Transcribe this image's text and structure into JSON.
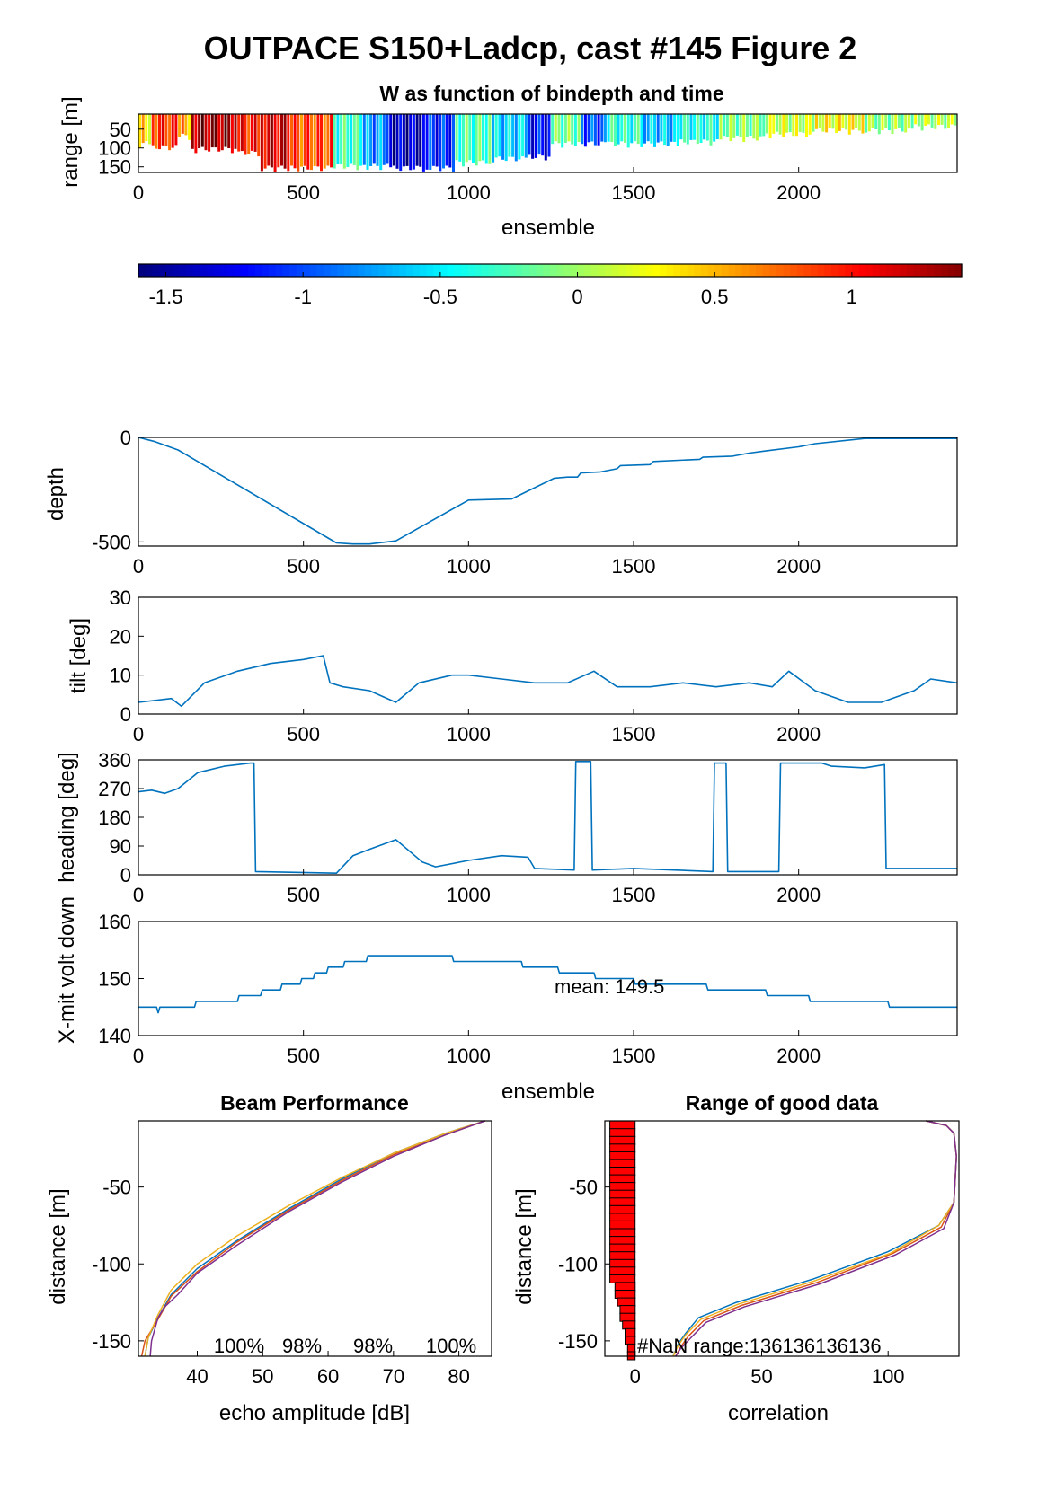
{
  "figure_title": "OUTPACE S150+Ladcp, cast #145 Figure 2",
  "chart_data": [
    {
      "id": "w-image",
      "type": "heatmap",
      "title": "W as function of bindepth and time",
      "xlabel": "ensemble",
      "ylabel": "range [m]",
      "xlim": [
        0,
        2480
      ],
      "ylim": [
        165,
        10
      ],
      "xticks": [
        "0",
        "500",
        "1000",
        "1500",
        "2000"
      ],
      "yticks": [
        "50",
        "100",
        "150"
      ],
      "colorbar": {
        "range": [
          -1.6,
          1.4
        ],
        "ticks": [
          "-1.5",
          "-1",
          "-0.5",
          "0",
          "0.5",
          "1"
        ],
        "tick_values": [
          -1.5,
          -1,
          -0.5,
          0,
          0.5,
          1
        ]
      },
      "segments": [
        {
          "x": [
            0,
            40
          ],
          "w": 0.35,
          "depth": 100
        },
        {
          "x": [
            40,
            120
          ],
          "w": 0.9,
          "depth": 110
        },
        {
          "x": [
            120,
            160
          ],
          "w": 0.55,
          "depth": 80
        },
        {
          "x": [
            160,
            300
          ],
          "w": 1.3,
          "depth": 115
        },
        {
          "x": [
            300,
            370
          ],
          "w": 0.95,
          "depth": 125
        },
        {
          "x": [
            370,
            460
          ],
          "w": 1.15,
          "depth": 165
        },
        {
          "x": [
            460,
            590
          ],
          "w": 0.8,
          "depth": 165
        },
        {
          "x": [
            590,
            680
          ],
          "w": -0.3,
          "depth": 160
        },
        {
          "x": [
            680,
            760
          ],
          "w": -0.8,
          "depth": 160
        },
        {
          "x": [
            760,
            870
          ],
          "w": -1.4,
          "depth": 165
        },
        {
          "x": [
            870,
            960
          ],
          "w": -1.1,
          "depth": 165
        },
        {
          "x": [
            960,
            1070
          ],
          "w": -0.25,
          "depth": 150
        },
        {
          "x": [
            1070,
            1180
          ],
          "w": -0.6,
          "depth": 140
        },
        {
          "x": [
            1180,
            1250
          ],
          "w": -1.2,
          "depth": 135
        },
        {
          "x": [
            1250,
            1340
          ],
          "w": -0.15,
          "depth": 100
        },
        {
          "x": [
            1340,
            1420
          ],
          "w": -1.0,
          "depth": 100
        },
        {
          "x": [
            1420,
            1520
          ],
          "w": -0.35,
          "depth": 100
        },
        {
          "x": [
            1520,
            1640
          ],
          "w": -0.65,
          "depth": 100
        },
        {
          "x": [
            1640,
            1760
          ],
          "w": -0.4,
          "depth": 95
        },
        {
          "x": [
            1760,
            1900
          ],
          "w": -0.1,
          "depth": 85
        },
        {
          "x": [
            1900,
            2050
          ],
          "w": 0.1,
          "depth": 75
        },
        {
          "x": [
            2050,
            2200
          ],
          "w": 0.25,
          "depth": 65
        },
        {
          "x": [
            2200,
            2350
          ],
          "w": -0.05,
          "depth": 65
        },
        {
          "x": [
            2350,
            2480
          ],
          "w": 0.05,
          "depth": 55
        }
      ]
    },
    {
      "id": "depth",
      "type": "line",
      "ylabel": "depth",
      "xlim": [
        0,
        2480
      ],
      "ylim": [
        -520,
        0
      ],
      "xticks": [
        "0",
        "500",
        "1000",
        "1500",
        "2000"
      ],
      "yticks": [
        "0",
        "-500"
      ],
      "ytick_values": [
        0,
        -500
      ],
      "series": [
        {
          "x": [
            0,
            50,
            120,
            600,
            650,
            700,
            780,
            1000,
            1130,
            1260,
            1300,
            1330,
            1340,
            1400,
            1450,
            1460,
            1550,
            1560,
            1700,
            1710,
            1800,
            1850,
            1900,
            2000,
            2050,
            2200,
            2480
          ],
          "y": [
            0,
            -20,
            -60,
            -505,
            -510,
            -510,
            -495,
            -300,
            -295,
            -195,
            -190,
            -190,
            -170,
            -165,
            -150,
            -135,
            -130,
            -115,
            -105,
            -95,
            -90,
            -75,
            -65,
            -45,
            -30,
            -5,
            -5
          ]
        }
      ]
    },
    {
      "id": "tilt",
      "type": "line",
      "ylabel": "tilt [deg]",
      "xlim": [
        0,
        2480
      ],
      "ylim": [
        0,
        30
      ],
      "xticks": [
        "0",
        "500",
        "1000",
        "1500",
        "2000"
      ],
      "yticks": [
        "0",
        "10",
        "20",
        "30"
      ],
      "ytick_values": [
        0,
        10,
        20,
        30
      ],
      "series": [
        {
          "x": [
            0,
            100,
            130,
            200,
            300,
            400,
            500,
            560,
            580,
            620,
            700,
            780,
            850,
            950,
            1000,
            1100,
            1200,
            1300,
            1380,
            1450,
            1550,
            1650,
            1750,
            1850,
            1920,
            1970,
            2050,
            2150,
            2250,
            2350,
            2400,
            2480
          ],
          "y": [
            3,
            4,
            2,
            8,
            11,
            13,
            14,
            15,
            8,
            7,
            6,
            3,
            8,
            10,
            10,
            9,
            8,
            8,
            11,
            7,
            7,
            8,
            7,
            8,
            7,
            11,
            6,
            3,
            3,
            6,
            9,
            8
          ]
        }
      ]
    },
    {
      "id": "heading",
      "type": "line",
      "ylabel": "heading [deg]",
      "xlim": [
        0,
        2480
      ],
      "ylim": [
        0,
        360
      ],
      "xticks": [
        "0",
        "500",
        "1000",
        "1500",
        "2000"
      ],
      "yticks": [
        "0",
        "90",
        "180",
        "270",
        "360"
      ],
      "ytick_values": [
        0,
        90,
        180,
        270,
        360
      ],
      "series": [
        {
          "x": [
            0,
            40,
            80,
            120,
            180,
            260,
            340,
            350,
            355,
            600,
            650,
            700,
            780,
            860,
            900,
            1000,
            1100,
            1180,
            1200,
            1320,
            1325,
            1370,
            1375,
            1500,
            1740,
            1745,
            1780,
            1785,
            1940,
            1945,
            2060,
            2070,
            2100,
            2200,
            2260,
            2265,
            2480
          ],
          "y": [
            260,
            265,
            255,
            270,
            320,
            340,
            350,
            350,
            10,
            5,
            60,
            80,
            110,
            40,
            25,
            45,
            60,
            55,
            20,
            15,
            355,
            355,
            15,
            20,
            10,
            350,
            350,
            10,
            10,
            350,
            350,
            350,
            340,
            335,
            345,
            20,
            20
          ]
        }
      ]
    },
    {
      "id": "xmit-volt",
      "type": "line",
      "ylabel": "X-mit volt down",
      "xlabel": "ensemble",
      "xlim": [
        0,
        2480
      ],
      "ylim": [
        140,
        160
      ],
      "xticks": [
        "0",
        "500",
        "1000",
        "1500",
        "2000"
      ],
      "yticks": [
        "140",
        "150",
        "160"
      ],
      "ytick_values": [
        140,
        150,
        160
      ],
      "annotation": "mean: 149.5",
      "series": [
        {
          "x": [
            0,
            55,
            60,
            65,
            170,
            175,
            300,
            305,
            370,
            375,
            430,
            435,
            490,
            495,
            530,
            535,
            570,
            575,
            620,
            625,
            690,
            695,
            950,
            955,
            1160,
            1165,
            1270,
            1275,
            1380,
            1385,
            1500,
            1505,
            1570,
            1575,
            1720,
            1725,
            1730,
            1900,
            1905,
            2030,
            2035,
            2270,
            2275,
            2480
          ],
          "y": [
            145,
            145,
            144,
            145,
            145,
            146,
            146,
            147,
            147,
            148,
            148,
            149,
            149,
            150,
            150,
            151,
            151,
            152,
            152,
            153,
            153,
            154,
            154,
            153,
            153,
            152,
            152,
            151,
            151,
            150,
            150,
            149,
            149,
            149,
            149,
            148,
            148,
            148,
            147,
            147,
            146,
            146,
            145,
            145
          ]
        }
      ]
    },
    {
      "id": "beam-performance",
      "type": "line",
      "title": "Beam Performance",
      "xlabel": "echo amplitude [dB]",
      "ylabel": "distance [m]",
      "xlim": [
        31,
        85
      ],
      "ylim": [
        -160,
        -7
      ],
      "xticks": [
        "40",
        "50",
        "60",
        "70",
        "80"
      ],
      "xtick_values": [
        40,
        50,
        60,
        70,
        80
      ],
      "yticks": [
        "-50",
        "-100",
        "-150"
      ],
      "ytick_values": [
        -50,
        -100,
        -150
      ],
      "percent_labels": [
        "100%",
        "98%",
        "98%",
        "100%"
      ],
      "series": [
        {
          "color": "#0072BD",
          "x": [
            84,
            78,
            70,
            62,
            54,
            46,
            40,
            36,
            34,
            32.5,
            32
          ],
          "y": [
            -7,
            -15,
            -28,
            -45,
            -64,
            -85,
            -103,
            -120,
            -135,
            -148,
            -160
          ]
        },
        {
          "color": "#D95319",
          "x": [
            84,
            78,
            70,
            62,
            54,
            46,
            40,
            36,
            34,
            32,
            31.5
          ],
          "y": [
            -7,
            -16,
            -29,
            -46,
            -65,
            -86,
            -105,
            -121,
            -136,
            -150,
            -160
          ]
        },
        {
          "color": "#EDB120",
          "x": [
            84,
            78,
            70,
            62,
            54,
            46,
            40,
            36,
            34,
            32.5,
            32
          ],
          "y": [
            -7,
            -15,
            -28,
            -44,
            -62,
            -82,
            -100,
            -117,
            -133,
            -148,
            -160
          ]
        },
        {
          "color": "#7E2F8E",
          "x": [
            84,
            78,
            70,
            62,
            54,
            46,
            40,
            37,
            35,
            34,
            33,
            32.8
          ],
          "y": [
            -7,
            -16,
            -30,
            -47,
            -66,
            -88,
            -106,
            -120,
            -128,
            -135,
            -150,
            -160
          ]
        }
      ]
    },
    {
      "id": "range-good-data",
      "type": "line",
      "title": "Range of good data",
      "xlabel": "correlation",
      "ylabel": "distance [m]",
      "xlim": [
        -12,
        128
      ],
      "ylim": [
        -160,
        -7
      ],
      "xticks": [
        "0",
        "50",
        "100"
      ],
      "xtick_values": [
        0,
        50,
        100
      ],
      "yticks": [
        "-50",
        "-100",
        "-150"
      ],
      "ytick_values": [
        -50,
        -100,
        -150
      ],
      "annotation": "#NaN range:136136136136",
      "bars": {
        "color": "#FF0000",
        "y": [
          -10,
          -15,
          -20,
          -25,
          -30,
          -35,
          -40,
          -45,
          -50,
          -55,
          -60,
          -65,
          -70,
          -75,
          -80,
          -85,
          -90,
          -95,
          -100,
          -105,
          -110,
          -115,
          -120,
          -125,
          -130,
          -135,
          -140,
          -145,
          -150,
          -155,
          -160
        ],
        "value": [
          -10,
          -10,
          -10,
          -10,
          -10,
          -10,
          -10,
          -10,
          -10,
          -10,
          -10,
          -10,
          -10,
          -10,
          -10,
          -10,
          -10,
          -10,
          -10,
          -10,
          -10,
          -8,
          -8,
          -7,
          -6,
          -6,
          -5,
          -4,
          -4,
          -3,
          -3
        ]
      },
      "series": [
        {
          "color": "#0072BD",
          "x": [
            115,
            123,
            126,
            127,
            126,
            120,
            100,
            70,
            40,
            25,
            20,
            17,
            15
          ],
          "y": [
            -7,
            -10,
            -15,
            -30,
            -60,
            -75,
            -92,
            -110,
            -125,
            -135,
            -145,
            -152,
            -160
          ]
        },
        {
          "color": "#D95319",
          "x": [
            115,
            123,
            126,
            127,
            126,
            121,
            102,
            72,
            42,
            27,
            21,
            18,
            16
          ],
          "y": [
            -7,
            -10,
            -15,
            -30,
            -60,
            -76,
            -93,
            -112,
            -127,
            -137,
            -147,
            -154,
            -160
          ]
        },
        {
          "color": "#EDB120",
          "x": [
            115,
            123,
            126,
            127,
            126,
            120,
            101,
            71,
            41,
            26,
            20,
            17,
            15
          ],
          "y": [
            -7,
            -10,
            -15,
            -30,
            -60,
            -75,
            -93,
            -111,
            -126,
            -136,
            -146,
            -153,
            -160
          ]
        },
        {
          "color": "#7E2F8E",
          "x": [
            115,
            123,
            126,
            127,
            126,
            122,
            103,
            73,
            43,
            28,
            22,
            18,
            16
          ],
          "y": [
            -7,
            -10,
            -15,
            -30,
            -60,
            -77,
            -94,
            -113,
            -128,
            -138,
            -148,
            -155,
            -160
          ]
        }
      ]
    }
  ]
}
